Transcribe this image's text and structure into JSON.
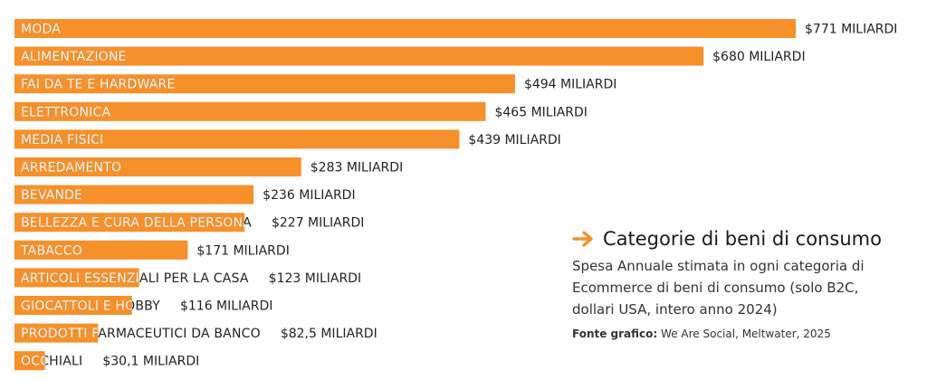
{
  "chart_data": {
    "type": "bar",
    "orientation": "horizontal",
    "categories": [
      "MODA",
      "ALIMENTAZIONE",
      "FAI DA TE E HARDWARE",
      "ELETTRONICA",
      "MEDIA FISICI",
      "ARREDAMENTO",
      "BEVANDE",
      "BELLEZZA E CURA DELLA PERSONA",
      "TABACCO",
      "ARTICOLI ESSENZIALI PER LA CASA",
      "GIOCATTOLI E HOBBY",
      "PRODOTTI FARMACEUTICI DA BANCO",
      "OCCHIALI"
    ],
    "values": [
      771,
      680,
      494,
      465,
      439,
      283,
      236,
      227,
      171,
      123,
      116,
      82.5,
      30.1
    ],
    "value_labels": [
      "$771 MILIARDI",
      "$680 MILIARDI",
      "$494 MILIARDI",
      "$465 MILIARDI",
      "$439 MILIARDI",
      "$283 MILIARDI",
      "$236 MILIARDI",
      "$227 MILIARDI",
      "$171 MILIARDI",
      "$123 MILIARDI",
      "$116 MILIARDI",
      "$82,5 MILIARDI",
      "$30,1 MILIARDI"
    ],
    "bar_color": "#f5902a",
    "label_on_bar_color": "#ffffff",
    "label_off_bar_color": "#222222",
    "grid": false,
    "legend": "none"
  },
  "panel": {
    "icon": "arrow-right-icon",
    "accent": "#f5902a",
    "title": "Categorie di beni di consumo",
    "subtitle": "Spesa Annuale stimata in ogni categoria di Ecommerce di beni di consumo (solo B2C, dollari USA, intero anno 2024)",
    "source_label": "Fonte grafico:",
    "source_text": "We Are Social, Meltwater, 2025"
  }
}
